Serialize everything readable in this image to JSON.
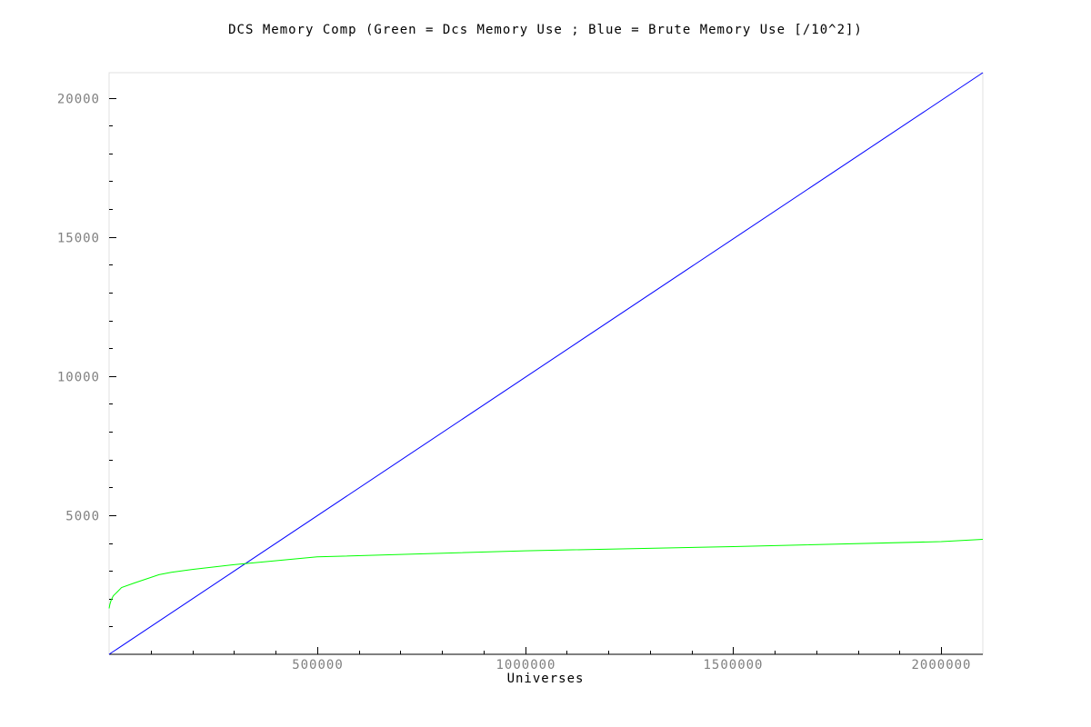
{
  "chart_data": {
    "type": "line",
    "title": "DCS Memory Comp (Green = Dcs Memory Use ; Blue = Brute Memory Use [/10^2])",
    "xlabel": "Universes",
    "ylabel": "",
    "xlim": [
      0,
      2100000
    ],
    "ylim": [
      0,
      20900
    ],
    "x_ticks": [
      500000,
      1000000,
      1500000,
      2000000
    ],
    "x_tick_labels": [
      "500000",
      "1000000",
      "1500000",
      "2000000"
    ],
    "x_minor_step": 100000,
    "y_ticks": [
      5000,
      10000,
      15000,
      20000
    ],
    "y_tick_labels": [
      "5000",
      "10000",
      "15000",
      "20000"
    ],
    "y_minor_step": 1000,
    "grid": false,
    "legend": "none",
    "series": [
      {
        "key": "brute",
        "color": "#0000ff",
        "x": [
          0,
          2100000
        ],
        "y": [
          0,
          20900
        ]
      },
      {
        "key": "dcs",
        "color": "#00ff00",
        "x": [
          0,
          2000,
          5000,
          10000,
          20000,
          30000,
          60000,
          90000,
          120000,
          150000,
          200000,
          300000,
          500000,
          1000000,
          1500000,
          2000000,
          2100000
        ],
        "y": [
          1650,
          1800,
          1950,
          2100,
          2250,
          2400,
          2560,
          2710,
          2860,
          2950,
          3050,
          3220,
          3500,
          3720,
          3870,
          4050,
          4130
        ]
      }
    ]
  }
}
